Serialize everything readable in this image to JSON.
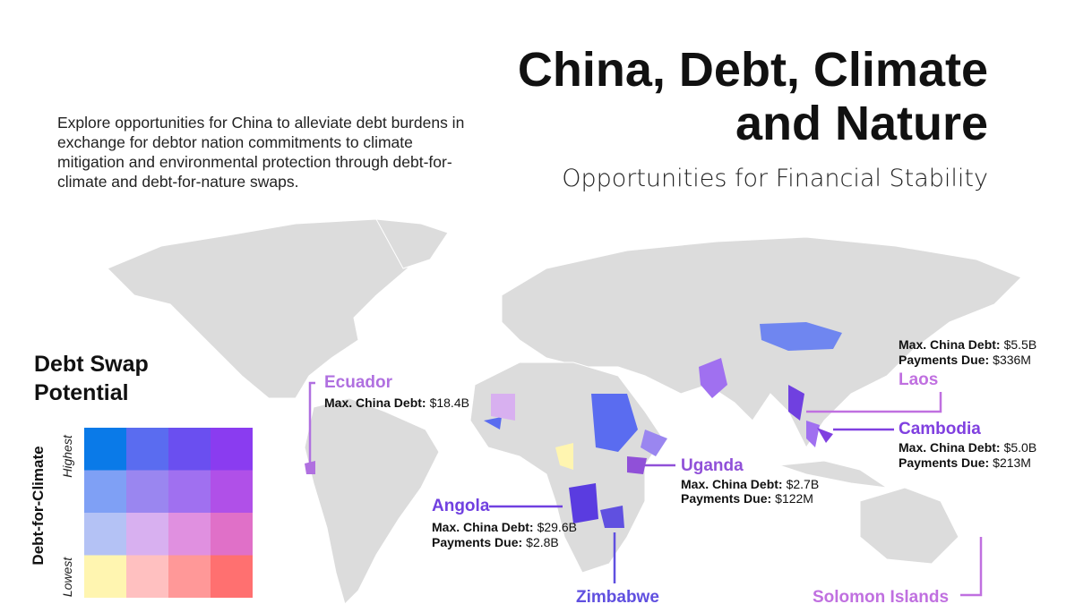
{
  "header": {
    "title_lines": [
      "China, Debt, Climate",
      "and Nature"
    ],
    "subtitle": "Opportunities for Financial Stability",
    "description": "Explore opportunities for China to alleviate debt burdens in exchange for debtor nation commitments to climate mitigation and environmental protection through debt-for-climate and debt-for-nature swaps."
  },
  "legend": {
    "title_lines": [
      "Debt Swap",
      "Potential"
    ],
    "axis_label": "Debt-for-Climate",
    "high": "Highest",
    "low": "Lowest",
    "colors": [
      [
        "#0a7ae8",
        "#5a6cf0",
        "#6a4ff0",
        "#8a3cf0"
      ],
      [
        "#7fa0f5",
        "#9a86f0",
        "#a070f0",
        "#b050e8"
      ],
      [
        "#b4c2f5",
        "#d8b0f0",
        "#e090e0",
        "#e070c8"
      ],
      [
        "#fff5b0",
        "#ffc0c0",
        "#ff9898",
        "#ff7070"
      ]
    ]
  },
  "callouts": [
    {
      "country": "Ecuador",
      "color": "#b070e0",
      "lines": [
        {
          "label": "Max. China Debt:",
          "value": "$18.4B"
        }
      ]
    },
    {
      "country": "Angola",
      "color": "#7040e0",
      "lines": [
        {
          "label": "Max. China Debt:",
          "value": "$29.6B"
        },
        {
          "label": "Payments Due:",
          "value": "$2.8B"
        }
      ]
    },
    {
      "country": "Zimbabwe",
      "color": "#6050e0",
      "lines": []
    },
    {
      "country": "Uganda",
      "color": "#9050d8",
      "lines": [
        {
          "label": "Max. China Debt:",
          "value": "$2.7B"
        },
        {
          "label": "Payments Due:",
          "value": "$122M"
        }
      ]
    },
    {
      "country": "Laos",
      "color": "#c070e0",
      "lines": [
        {
          "label": "Max. China Debt:",
          "value": "$5.5B"
        },
        {
          "label": "Payments Due:",
          "value": "$336M"
        }
      ]
    },
    {
      "country": "Cambodia",
      "color": "#8040e0",
      "lines": [
        {
          "label": "Max. China Debt:",
          "value": "$5.0B"
        },
        {
          "label": "Payments Due:",
          "value": "$213M"
        }
      ]
    },
    {
      "country": "Solomon Islands",
      "color": "#c070e0",
      "lines": []
    }
  ]
}
